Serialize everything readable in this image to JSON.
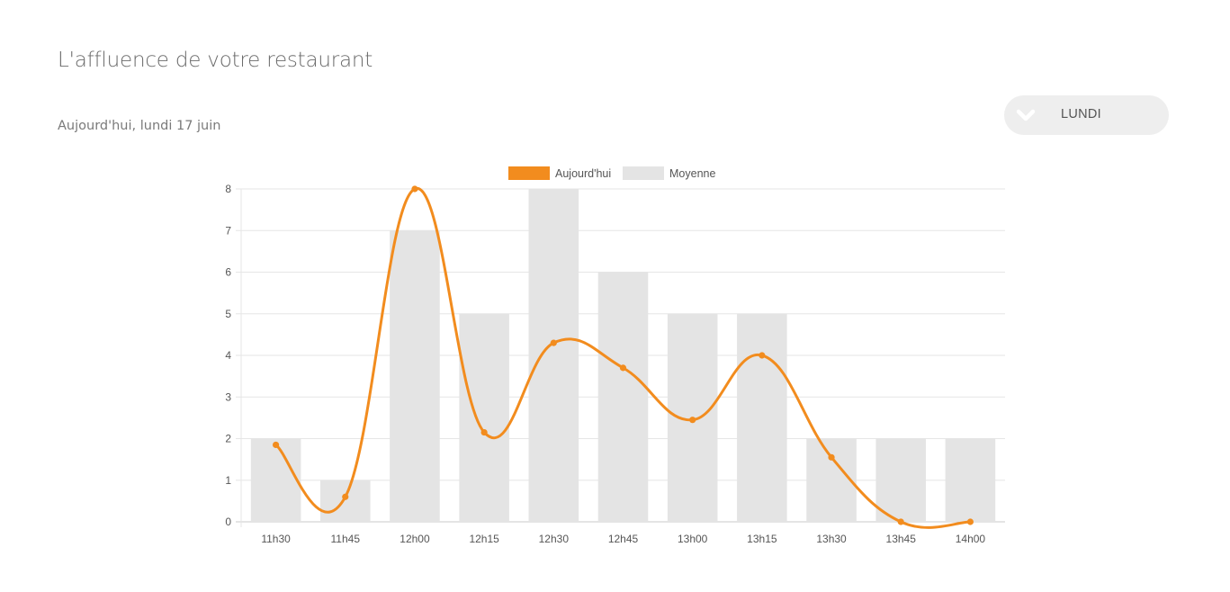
{
  "header": {
    "title": "L'affluence de votre restaurant",
    "subtitle": "Aujourd'hui, lundi 17 juin"
  },
  "day_selector": {
    "selected": "LUNDI",
    "icon": "chevron-down-icon"
  },
  "colors": {
    "today": "#f28c1e",
    "average": "#e4e4e4",
    "grid": "#e6e6e6",
    "axis": "#c8c8c8",
    "tick_text": "#555555"
  },
  "chart_data": {
    "type": "bar",
    "categories": [
      "11h30",
      "11h45",
      "12h00",
      "12h15",
      "12h30",
      "12h45",
      "13h00",
      "13h15",
      "13h30",
      "13h45",
      "14h00"
    ],
    "series": [
      {
        "name": "Aujourd'hui",
        "type": "line",
        "values": [
          1.85,
          0.6,
          8,
          2.15,
          4.3,
          3.7,
          2.45,
          4,
          1.55,
          0,
          0
        ]
      },
      {
        "name": "Moyenne",
        "type": "bar",
        "values": [
          2,
          1,
          7,
          5,
          8,
          6,
          5,
          5,
          2,
          2,
          2
        ]
      }
    ],
    "ylim": [
      0,
      8
    ],
    "yticks": [
      0,
      1,
      2,
      3,
      4,
      5,
      6,
      7,
      8
    ],
    "grid": true,
    "legend": "top-center"
  }
}
